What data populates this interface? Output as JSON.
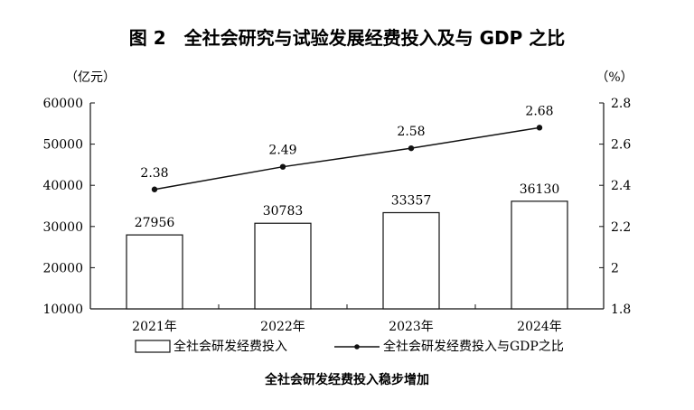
{
  "chart_data": {
    "type": "bar",
    "title": "图 2　全社会研究与试验发展经费投入及与 GDP 之比",
    "caption": "全社会研发经费投入稳步增加",
    "categories": [
      "2021年",
      "2022年",
      "2023年",
      "2024年"
    ],
    "series": [
      {
        "name": "全社会研发经费投入",
        "type": "bar",
        "axis": "left",
        "values": [
          27956,
          30783,
          33357,
          36130
        ]
      },
      {
        "name": "全社会研发经费投入与GDP之比",
        "type": "line",
        "axis": "right",
        "values": [
          2.38,
          2.49,
          2.58,
          2.68
        ]
      }
    ],
    "y_left": {
      "unit": "（亿元）",
      "range": [
        10000,
        60000
      ],
      "ticks": [
        10000,
        20000,
        30000,
        40000,
        50000,
        60000
      ]
    },
    "y_right": {
      "unit": "（%）",
      "range": [
        1.8,
        2.8
      ],
      "ticks": [
        1.8,
        2,
        2.2,
        2.4,
        2.6,
        2.8
      ]
    },
    "legend_position": "bottom",
    "grid": false,
    "colors": {
      "bar_fill": "#ffffff",
      "stroke": "#111111"
    }
  }
}
